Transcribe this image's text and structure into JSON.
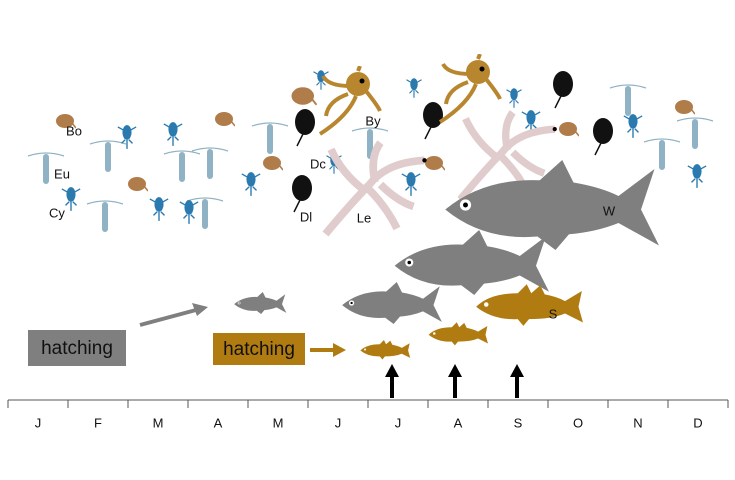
{
  "months": [
    "J",
    "F",
    "M",
    "A",
    "M",
    "J",
    "J",
    "A",
    "S",
    "O",
    "N",
    "D"
  ],
  "organism_labels": [
    "Bo",
    "Eu",
    "Cy",
    "By",
    "Dc",
    "Dl",
    "Le",
    "W",
    "S"
  ],
  "hatching_labels": [
    "hatching",
    "hatching"
  ]
}
